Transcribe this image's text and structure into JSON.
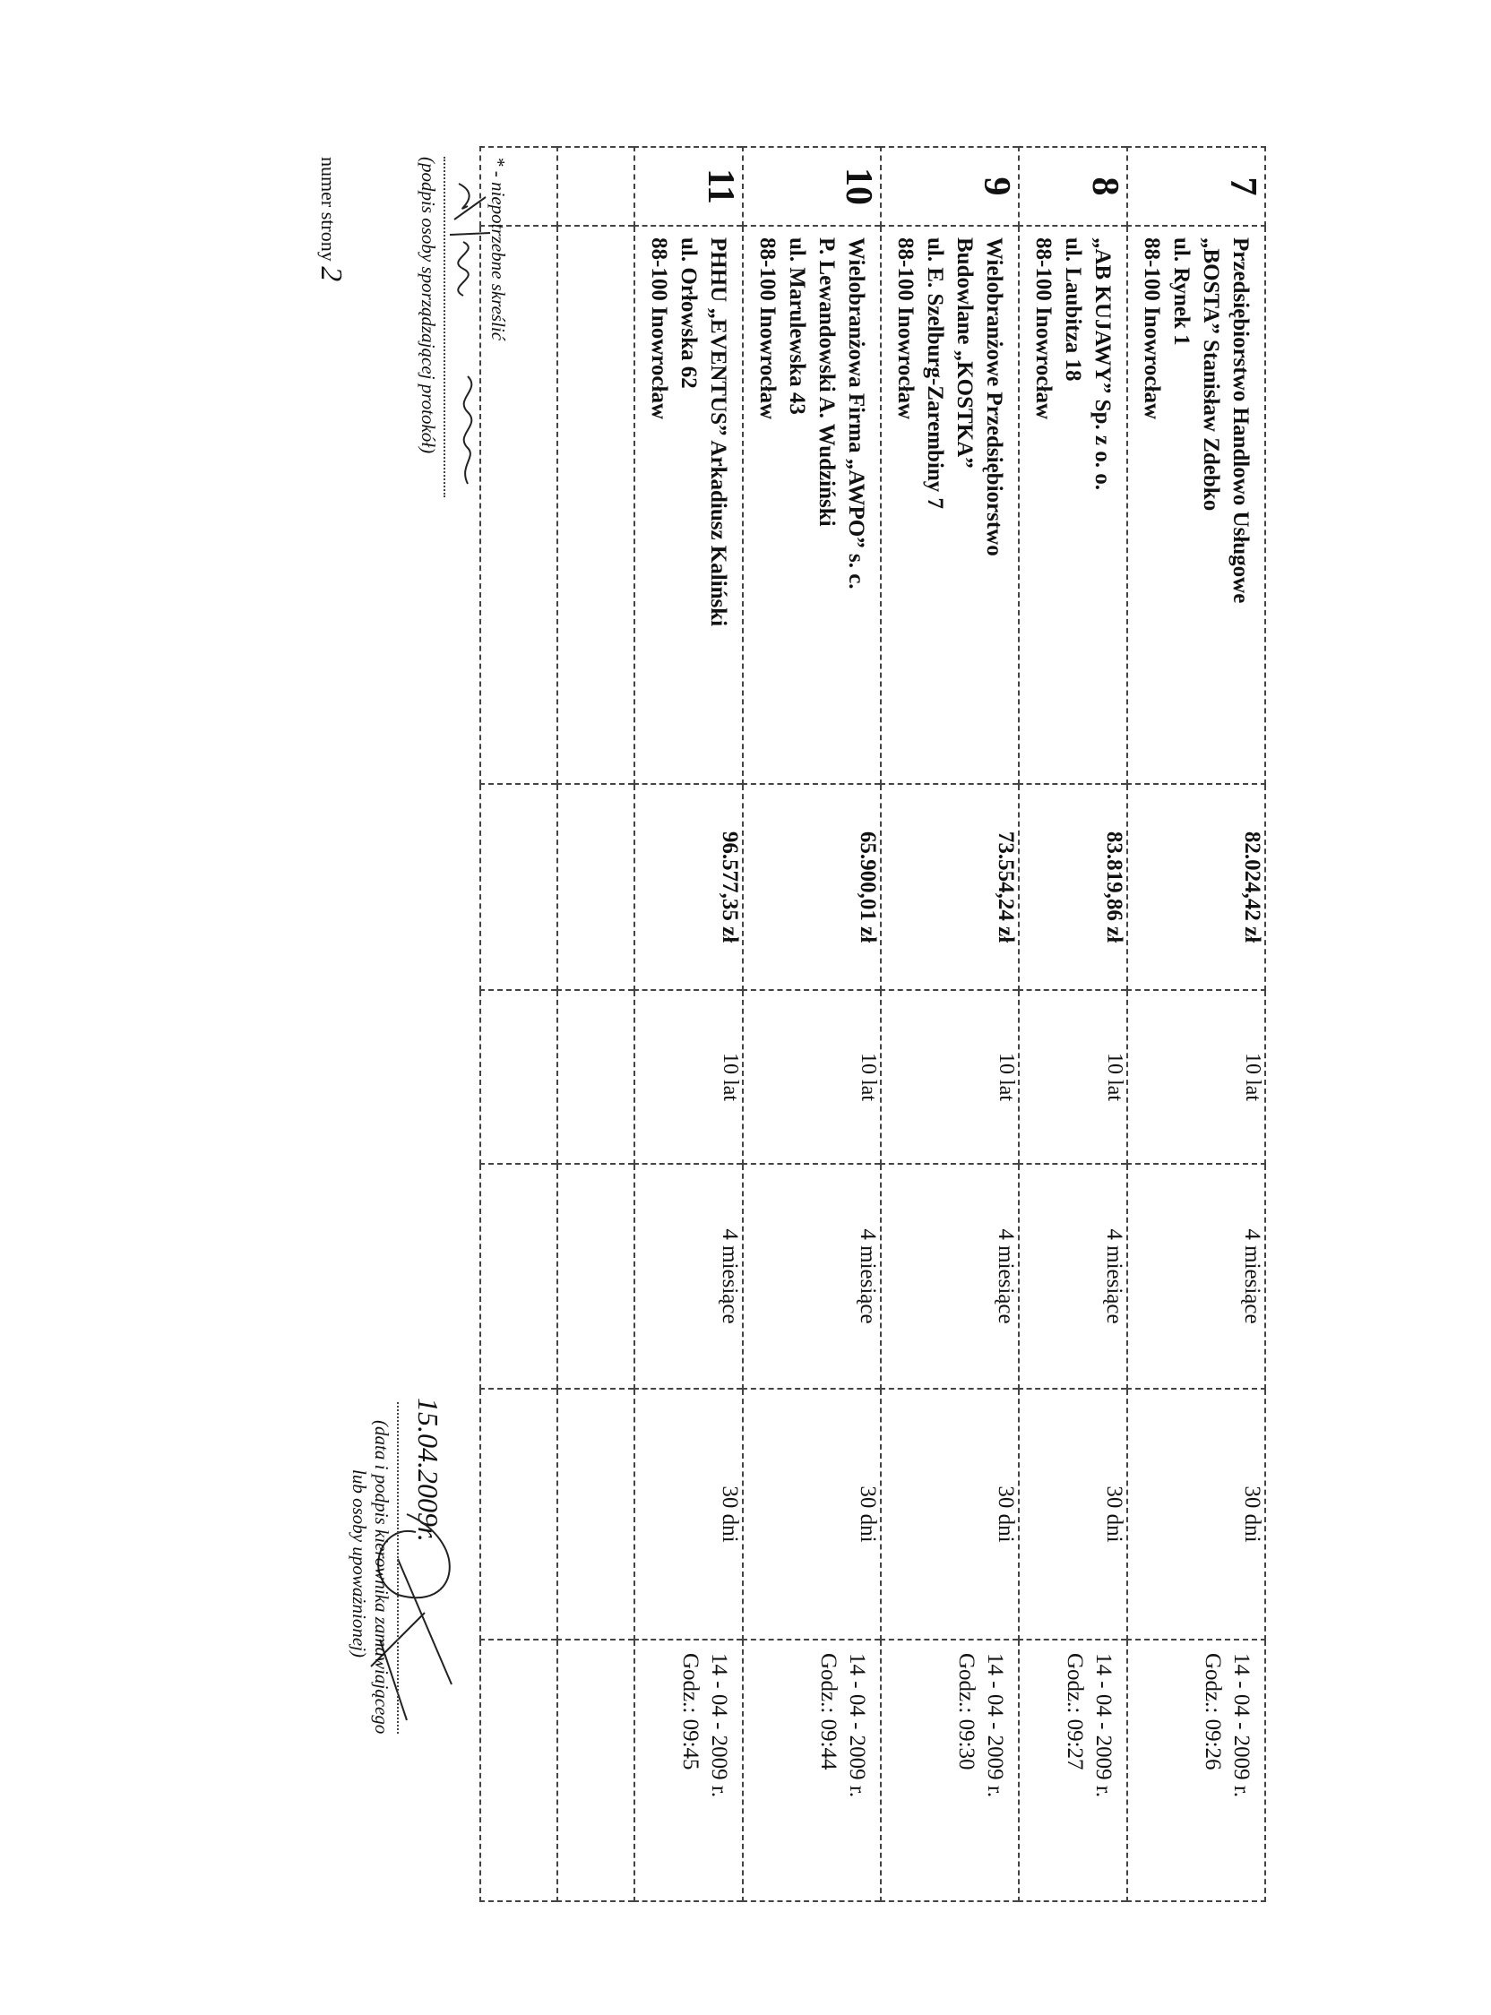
{
  "rows": [
    {
      "no": "7",
      "name": [
        "Przedsiębiorstwo Handlowo Usługowe",
        "„BOSTA” Stanisław Zdebko",
        "ul. Rynek 1",
        "88-100 Inowrocław"
      ],
      "price": "82.024,42 zł",
      "warranty": "10 lat",
      "execution": "4 miesiące",
      "payment": "30 dni",
      "date": "14 - 04 - 2009 r.",
      "time": "Godz.: 09:26"
    },
    {
      "no": "8",
      "name": [
        "„AB KUJAWY” Sp. z o. o.",
        "ul. Laubitza 18",
        "88-100 Inowrocław"
      ],
      "price": "83.819,86 zł",
      "warranty": "10 lat",
      "execution": "4 miesiące",
      "payment": "30 dni",
      "date": "14 - 04 - 2009 r.",
      "time": "Godz.: 09:27"
    },
    {
      "no": "9",
      "name": [
        "Wielobranżowe Przedsiębiorstwo",
        "Budowlane „KOSTKA”",
        "ul. E. Szelburg-Zarembiny 7",
        "88-100 Inowrocław"
      ],
      "price": "73.554,24 zł",
      "warranty": "10 lat",
      "execution": "4 miesiące",
      "payment": "30 dni",
      "date": "14 - 04 - 2009 r.",
      "time": "Godz.: 09:30"
    },
    {
      "no": "10",
      "name": [
        "Wielobranżowa Firma „AWPO” s. c.",
        "P. Lewandowski A. Wudziński",
        "ul. Marulewska 43",
        "88-100 Inowrocław"
      ],
      "price": "65.900,01 zł",
      "warranty": "10 lat",
      "execution": "4 miesiące",
      "payment": "30 dni",
      "date": "14 - 04 - 2009 r.",
      "time": "Godz.: 09:44"
    },
    {
      "no": "11",
      "name": [
        "PHHU „EVENTUS” Arkadiusz Kaliński",
        "ul. Orłowska 62",
        "88-100 Inowrocław"
      ],
      "price": "96.577,35 zł",
      "warranty": "10 lat",
      "execution": "4 miesiące",
      "payment": "30 dni",
      "date": "14 - 04 - 2009 r.",
      "time": "Godz.: 09:45"
    }
  ],
  "footer": {
    "note": "* - niepotrzebne skreślić",
    "preparer_caption": "(podpis osoby sporządzającej protokół)",
    "page_label": "numer strony",
    "page_number": "2",
    "signature_date": "15.04.2009r.",
    "manager_caption_1": "(data i podpis kierownika zamawiającego",
    "manager_caption_2": "lub osoby upoważnionej)"
  }
}
